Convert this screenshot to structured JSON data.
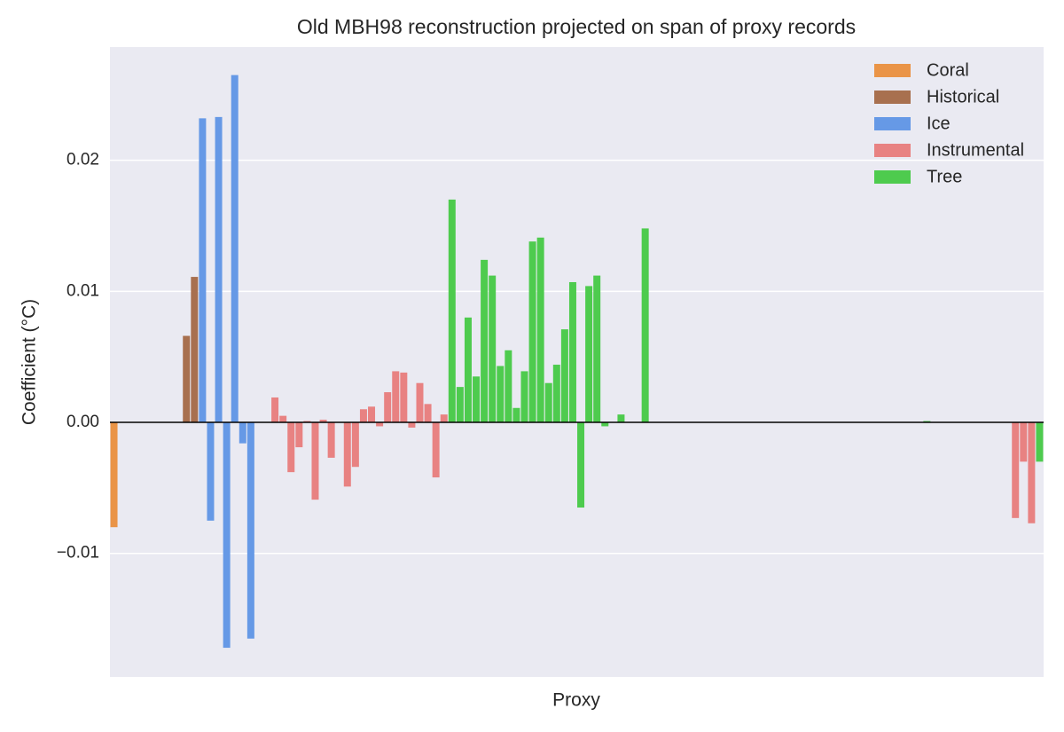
{
  "chart_data": {
    "type": "bar",
    "title": "Old MBH98 reconstruction projected on span of proxy records",
    "x_label": "Proxy",
    "y_label": "Coefficient (°C)",
    "categories": [
      null,
      null,
      null,
      null,
      null,
      null,
      null,
      null,
      null,
      null,
      null,
      null,
      null,
      null,
      null,
      null,
      null,
      null,
      null,
      null,
      null,
      null,
      null,
      null,
      null,
      null,
      null,
      null,
      null,
      null,
      null,
      null,
      null,
      null,
      null,
      null,
      null,
      null,
      null,
      null,
      null,
      null,
      null,
      null,
      null,
      null,
      null,
      null,
      null,
      null,
      null,
      null,
      null,
      null,
      null,
      null,
      null,
      null,
      null,
      null,
      null,
      null,
      null,
      null,
      null,
      null,
      null,
      null,
      null,
      null,
      null,
      null,
      null,
      null,
      null,
      null,
      null,
      null,
      null,
      null,
      null,
      null,
      null,
      null,
      null,
      null,
      null,
      null,
      null,
      null,
      null,
      null,
      null,
      null,
      null,
      null,
      null,
      null,
      null,
      null,
      null,
      null,
      null,
      null,
      null,
      null,
      null,
      null,
      null,
      null,
      null,
      null,
      null,
      null,
      null,
      null
    ],
    "values": [
      -0.008,
      0,
      0,
      0,
      0,
      0,
      0,
      0,
      0,
      0.0066,
      0.0111,
      0.0232,
      -0.0075,
      0.0233,
      -0.0172,
      0.0265,
      -0.0016,
      -0.0165,
      0,
      0,
      0.0019,
      0.0005,
      -0.0038,
      -0.0019,
      0.0001,
      -0.0059,
      0.0002,
      -0.0027,
      0,
      -0.0049,
      -0.0034,
      0.001,
      0.0012,
      -0.0003,
      0.0023,
      0.0039,
      0.0038,
      -0.0004,
      0.003,
      0.0014,
      -0.0042,
      0.0006,
      0.017,
      0.0027,
      0.008,
      0.0035,
      0.0124,
      0.0112,
      0.0043,
      0.0055,
      0.0011,
      0.0039,
      0.0138,
      0.0141,
      0.003,
      0.0044,
      0.0071,
      0.0107,
      -0.0065,
      0.0104,
      0.0112,
      -0.0003,
      0,
      0.0006,
      0,
      0,
      0.0148,
      0,
      0,
      0,
      0,
      0,
      0,
      0,
      0,
      0,
      0,
      0,
      0,
      0,
      0,
      0,
      0,
      0,
      0,
      0,
      0,
      0,
      0,
      0,
      0,
      0,
      0,
      0,
      0,
      0,
      0,
      0,
      0,
      0,
      0,
      0.0001,
      0,
      0,
      0,
      0,
      0,
      0,
      0,
      0,
      0,
      0,
      -0.0073,
      -0.003,
      -0.0077,
      -0.003
    ],
    "bar_series": [
      0,
      0,
      0,
      0,
      0,
      0,
      0,
      0,
      0,
      1,
      1,
      2,
      2,
      2,
      2,
      2,
      2,
      2,
      3,
      3,
      3,
      3,
      3,
      3,
      3,
      3,
      3,
      3,
      3,
      3,
      3,
      3,
      3,
      3,
      3,
      3,
      3,
      3,
      3,
      3,
      3,
      3,
      4,
      4,
      4,
      4,
      4,
      4,
      4,
      4,
      4,
      4,
      4,
      4,
      4,
      4,
      4,
      4,
      4,
      4,
      4,
      4,
      4,
      4,
      4,
      4,
      4,
      4,
      4,
      4,
      4,
      4,
      4,
      4,
      4,
      4,
      4,
      4,
      4,
      4,
      4,
      4,
      4,
      4,
      4,
      4,
      4,
      4,
      4,
      4,
      4,
      4,
      4,
      4,
      4,
      4,
      4,
      4,
      4,
      4,
      4,
      4,
      4,
      4,
      4,
      4,
      4,
      4,
      4,
      4,
      4,
      4,
      3,
      3,
      3,
      4
    ],
    "series": [
      {
        "name": "Coral",
        "color": "#ea9447"
      },
      {
        "name": "Historical",
        "color": "#a8704f"
      },
      {
        "name": "Ice",
        "color": "#6699e6"
      },
      {
        "name": "Instrumental",
        "color": "#e88282"
      },
      {
        "name": "Tree",
        "color": "#4ecb4e"
      }
    ],
    "ylim": [
      -0.01943,
      0.02864
    ],
    "yticks": [
      {
        "value": -0.01,
        "label": "−0.01"
      },
      {
        "value": 0,
        "label": "0.00"
      },
      0.01,
      0.02
    ],
    "grid": true,
    "zero_line": true,
    "legend_position": "upper-right"
  }
}
